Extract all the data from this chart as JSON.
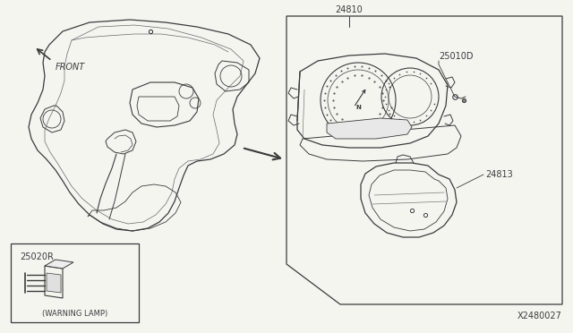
{
  "bg_color": "#f5f5f0",
  "line_color": "#3a3a3a",
  "diagram_id": "X2480027",
  "label_24810": "24810",
  "label_25010D": "25010D",
  "label_24813": "24813",
  "label_25020R": "25020R",
  "label_warning": "(WARNING LAMP)",
  "label_front": "FRONT"
}
